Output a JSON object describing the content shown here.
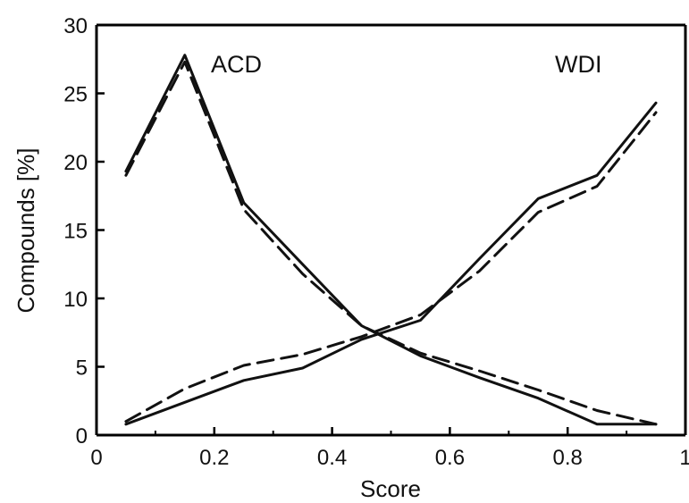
{
  "chart_data": {
    "type": "line",
    "xlabel": "Score",
    "ylabel": "Compounds [%]",
    "xlim": [
      0,
      1
    ],
    "ylim": [
      0,
      30
    ],
    "x_ticks": [
      "0",
      "0.2",
      "0.4",
      "0.6",
      "0.8",
      "1"
    ],
    "y_ticks": [
      "0",
      "5",
      "10",
      "15",
      "20",
      "25",
      "30"
    ],
    "grid": false,
    "annotations": [
      "ACD",
      "WDI"
    ],
    "x": [
      0.05,
      0.15,
      0.25,
      0.35,
      0.45,
      0.55,
      0.65,
      0.75,
      0.85,
      0.95
    ],
    "series": [
      {
        "values": [
          19.3,
          27.8,
          17.0,
          12.5,
          8.0,
          5.8,
          4.2,
          2.7,
          0.8,
          0.8
        ],
        "style": "solid"
      },
      {
        "values": [
          19.0,
          27.3,
          16.5,
          11.8,
          8.0,
          6.0,
          4.7,
          3.3,
          1.8,
          0.8
        ],
        "style": "dashed"
      },
      {
        "values": [
          0.8,
          2.4,
          4.0,
          4.9,
          7.0,
          8.4,
          12.9,
          17.3,
          19.0,
          24.3
        ],
        "style": "solid"
      },
      {
        "values": [
          1.0,
          3.4,
          5.1,
          5.9,
          7.2,
          8.8,
          12.0,
          16.3,
          18.2,
          23.6
        ],
        "style": "dashed"
      }
    ]
  }
}
